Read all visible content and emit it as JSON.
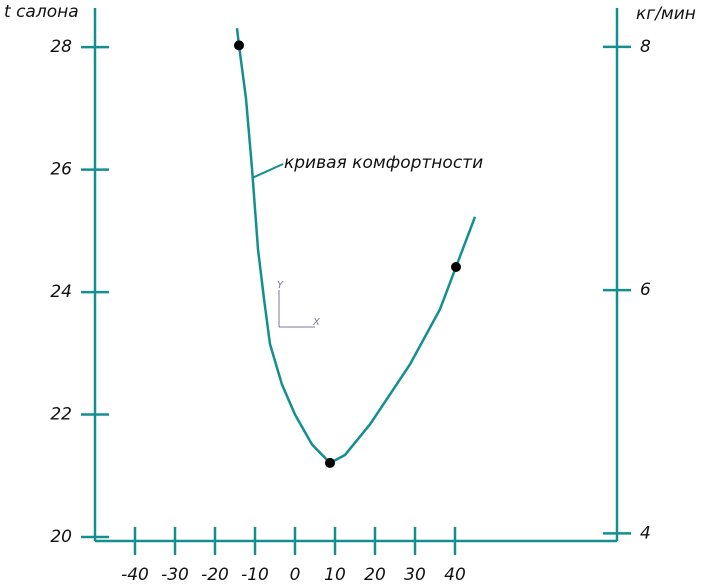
{
  "chart_data": {
    "type": "line",
    "y_title": "t салона",
    "y2_title": "кг/мин",
    "annotation": "кривая комфортности",
    "ucs_labels": [
      "Y",
      "X"
    ],
    "x": [
      -14.5,
      -14,
      -12.25,
      -10.75,
      -9.25,
      -7.75,
      -6.25,
      -3.25,
      0,
      4.25,
      8.75,
      12.5,
      18.75,
      28.75,
      36.25,
      40.25,
      45
    ],
    "series": [
      {
        "color": "#148f8f",
        "values": [
          28.31,
          28.03,
          27.16,
          26.02,
          24.7,
          23.89,
          23.15,
          22.49,
          22.0,
          21.51,
          21.21,
          21.34,
          21.84,
          22.82,
          23.72,
          24.41,
          25.23
        ]
      }
    ],
    "points": {
      "x": [
        -14,
        8.75,
        40.25
      ],
      "values": [
        28.03,
        21.21,
        24.41
      ],
      "color": "#000000"
    },
    "xlim": [
      -50,
      80.5
    ],
    "xticks": [
      -40,
      -30,
      -20,
      -10,
      0,
      10,
      20,
      30,
      40
    ],
    "ylim": [
      20,
      28.64
    ],
    "yticks": [
      20,
      22,
      24,
      26,
      28
    ],
    "y2lim": [
      3.97,
      8.32
    ],
    "y2ticks": [
      4,
      6,
      8
    ]
  }
}
